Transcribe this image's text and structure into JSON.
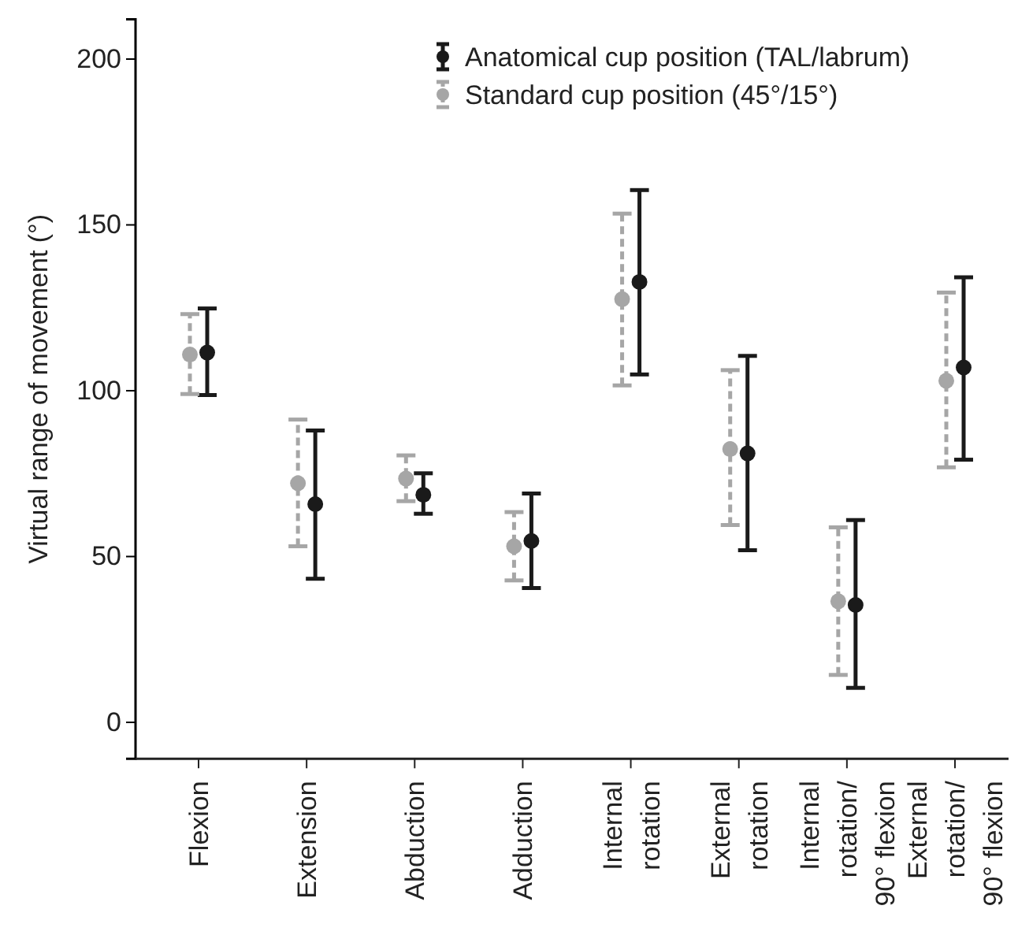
{
  "chart_data": {
    "type": "scatter",
    "ylabel": "Virtual range of movement (°)",
    "categories": [
      "Flexion",
      "Extension",
      "Abduction",
      "Adduction",
      "Internal rotation",
      "External rotation",
      "Internal rotation/ 90° flexion",
      "External rotation/ 90° flexion"
    ],
    "ylim": [
      -11,
      212
    ],
    "yticks": [
      0,
      50,
      100,
      150,
      200
    ],
    "grid": false,
    "legend": "top right",
    "marker": "circle",
    "series": [
      {
        "name": "Anatomical cup position (TAL/labrum)",
        "color": "#1a1a1a",
        "line_style": "solid",
        "values": [
          111.5,
          65.8,
          68.6,
          54.7,
          132.8,
          81.1,
          35.4,
          107.0
        ],
        "errors": [
          [
            98.7,
            124.8
          ],
          [
            43.3,
            88.0
          ],
          [
            62.9,
            75.1
          ],
          [
            40.5,
            69.0
          ],
          [
            104.9,
            160.5
          ],
          [
            51.9,
            110.5
          ],
          [
            10.4,
            61.0
          ],
          [
            79.2,
            134.2
          ]
        ]
      },
      {
        "name": "Standard cup position (45°/15°)",
        "color": "#a6a6a6",
        "line_style": "dashed",
        "values": [
          110.9,
          72.1,
          73.5,
          53.1,
          127.6,
          82.4,
          36.5,
          103.0
        ],
        "errors": [
          [
            99.0,
            123.1
          ],
          [
            53.1,
            91.3
          ],
          [
            66.7,
            80.5
          ],
          [
            42.8,
            63.4
          ],
          [
            101.6,
            153.4
          ],
          [
            59.5,
            106.2
          ],
          [
            14.3,
            58.8
          ],
          [
            76.9,
            129.6
          ]
        ]
      }
    ]
  }
}
